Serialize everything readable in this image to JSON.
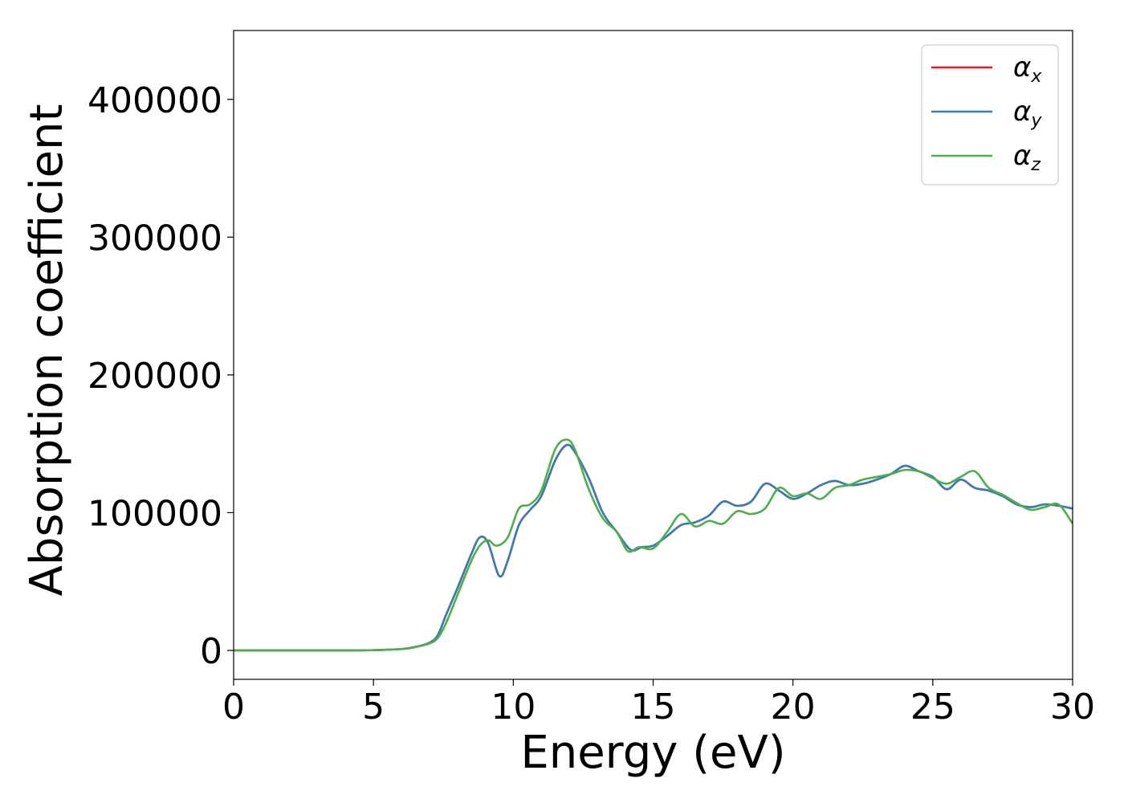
{
  "chart_data": {
    "type": "line",
    "title": "",
    "xlabel": "Energy (eV)",
    "ylabel": "Absorption coefficient",
    "xlim": [
      0,
      30
    ],
    "ylim": [
      -21000,
      450000
    ],
    "xticks": [
      0,
      5,
      10,
      15,
      20,
      25,
      30
    ],
    "yticks": [
      0,
      100000,
      200000,
      300000,
      400000
    ],
    "grid": false,
    "legend_position": "top-right",
    "series": [
      {
        "name": "α",
        "subscript": "x",
        "color": "#e41a1c",
        "x": [
          0,
          2,
          4,
          5,
          6,
          6.5,
          7,
          7.3,
          7.6,
          8,
          8.5,
          8.8,
          9.1,
          9.5,
          9.8,
          10.2,
          10.6,
          11,
          11.5,
          11.9,
          12.2,
          12.7,
          13.2,
          13.7,
          14.2,
          14.6,
          15,
          15.5,
          16,
          16.5,
          17,
          17.5,
          18,
          18.5,
          19,
          19.5,
          20,
          20.5,
          21,
          21.5,
          22,
          22.5,
          23,
          23.5,
          24,
          24.5,
          25,
          25.5,
          26,
          26.5,
          27,
          27.5,
          28,
          28.5,
          29,
          29.5,
          30
        ],
        "y": [
          0,
          0,
          0,
          200,
          1000,
          2500,
          5500,
          11000,
          26000,
          45000,
          70000,
          82000,
          78000,
          54000,
          65000,
          91000,
          102000,
          112000,
          138000,
          149000,
          144000,
          125000,
          100000,
          86000,
          73000,
          75000,
          76000,
          83000,
          91000,
          93000,
          98000,
          108000,
          105000,
          108000,
          121000,
          116000,
          110000,
          114000,
          120000,
          123000,
          120000,
          121000,
          124000,
          128000,
          134000,
          130000,
          126000,
          117000,
          124000,
          118000,
          116000,
          112000,
          106000,
          104000,
          106000,
          105000,
          103000
        ]
      },
      {
        "name": "α",
        "subscript": "y",
        "color": "#377eb8",
        "x": [
          0,
          2,
          4,
          5,
          6,
          6.5,
          7,
          7.3,
          7.6,
          8,
          8.5,
          8.8,
          9.1,
          9.5,
          9.8,
          10.2,
          10.6,
          11,
          11.5,
          11.9,
          12.2,
          12.7,
          13.2,
          13.7,
          14.2,
          14.6,
          15,
          15.5,
          16,
          16.5,
          17,
          17.5,
          18,
          18.5,
          19,
          19.5,
          20,
          20.5,
          21,
          21.5,
          22,
          22.5,
          23,
          23.5,
          24,
          24.5,
          25,
          25.5,
          26,
          26.5,
          27,
          27.5,
          28,
          28.5,
          29,
          29.5,
          30
        ],
        "y": [
          0,
          0,
          0,
          200,
          1000,
          2500,
          5500,
          11000,
          26000,
          45000,
          70000,
          82000,
          78000,
          54000,
          65000,
          91000,
          102000,
          112000,
          138000,
          149000,
          144000,
          125000,
          100000,
          86000,
          73000,
          75000,
          76000,
          83000,
          91000,
          93000,
          98000,
          108000,
          105000,
          108000,
          121000,
          116000,
          110000,
          114000,
          120000,
          123000,
          120000,
          121000,
          124000,
          128000,
          134000,
          130000,
          126000,
          117000,
          124000,
          118000,
          116000,
          112000,
          106000,
          104000,
          106000,
          105000,
          103000
        ]
      },
      {
        "name": "α",
        "subscript": "z",
        "color": "#4daf4a",
        "x": [
          0,
          2,
          4,
          5,
          6,
          6.5,
          7,
          7.3,
          7.6,
          8,
          8.5,
          8.8,
          9.1,
          9.4,
          9.8,
          10.2,
          10.6,
          11,
          11.5,
          11.9,
          12.2,
          12.7,
          13.2,
          13.7,
          14.1,
          14.5,
          15,
          15.5,
          16,
          16.5,
          17,
          17.5,
          18,
          18.5,
          19,
          19.5,
          20,
          20.5,
          21,
          21.5,
          22,
          22.5,
          23,
          23.5,
          24,
          24.5,
          25,
          25.5,
          26,
          26.5,
          27,
          27.5,
          28,
          28.5,
          29,
          29.5,
          30
        ],
        "y": [
          0,
          0,
          0,
          200,
          1000,
          2500,
          5000,
          9000,
          20000,
          40000,
          65000,
          76000,
          80000,
          76000,
          82000,
          103000,
          106000,
          116000,
          146000,
          153000,
          146000,
          117000,
          96000,
          86000,
          72000,
          75000,
          74000,
          86000,
          99000,
          90000,
          94000,
          92000,
          101000,
          99000,
          103000,
          118000,
          112000,
          114000,
          110000,
          118000,
          120000,
          124000,
          126000,
          128000,
          131000,
          130000,
          125000,
          121000,
          126000,
          130000,
          118000,
          113000,
          107000,
          102000,
          104000,
          106000,
          92000
        ]
      }
    ]
  }
}
